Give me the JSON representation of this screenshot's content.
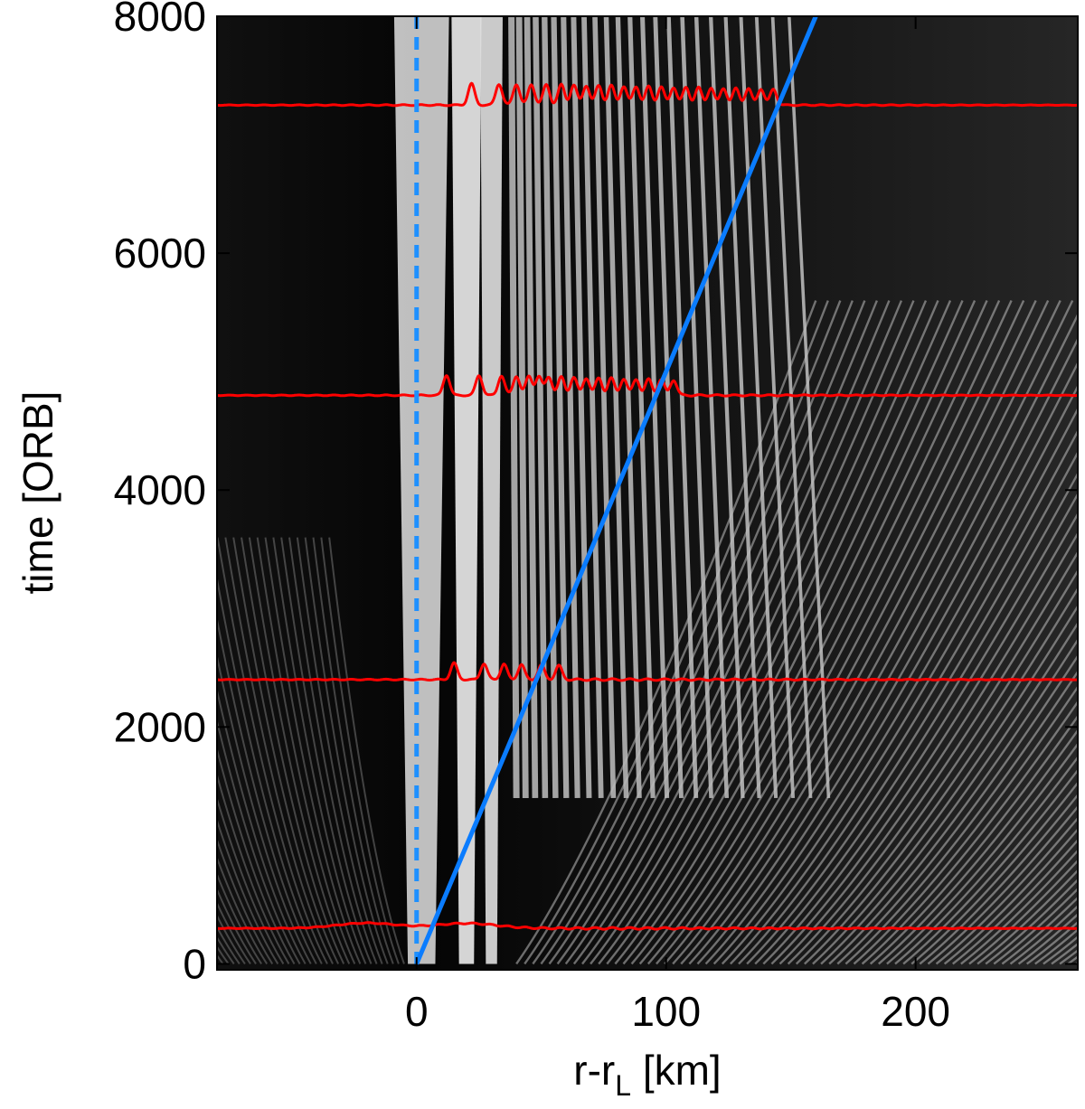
{
  "chart_data": {
    "type": "heatmap",
    "xlabel_main": "r-r",
    "xlabel_sub": "L",
    "xlabel_unit": " [km]",
    "ylabel": "time [ORB]",
    "xlim": [
      -80,
      265
    ],
    "ylim": [
      -50,
      8000
    ],
    "xticks": [
      0,
      100,
      200
    ],
    "xtick_labels": [
      "0",
      "100",
      "200"
    ],
    "yticks": [
      0,
      2000,
      4000,
      6000,
      8000
    ],
    "ytick_labels": [
      "0",
      "2000",
      "4000",
      "6000",
      "8000"
    ],
    "background": "grayscale spiral density wave pattern",
    "overlays": [
      {
        "kind": "dashed-vertical-line",
        "x": 0,
        "color": "#1e90ff"
      },
      {
        "kind": "line",
        "x": [
          0,
          160
        ],
        "y": [
          0,
          8000
        ],
        "color": "#0a7cff"
      }
    ],
    "profiles": {
      "color": "#ff0000",
      "baselines": [
        300,
        2400,
        4800,
        7250
      ],
      "peak_x": [
        [
          -20,
          20
        ],
        [
          15,
          27,
          35,
          42,
          50,
          57
        ],
        [
          12,
          25,
          34,
          40,
          45,
          49,
          53,
          58,
          63,
          68,
          73,
          78,
          83,
          88,
          93,
          98,
          103
        ],
        [
          22,
          33,
          40,
          46,
          52,
          58,
          63,
          68,
          73,
          78,
          83,
          88,
          93,
          98,
          103,
          108,
          113,
          118,
          123,
          128,
          133,
          138,
          143
        ]
      ]
    }
  }
}
